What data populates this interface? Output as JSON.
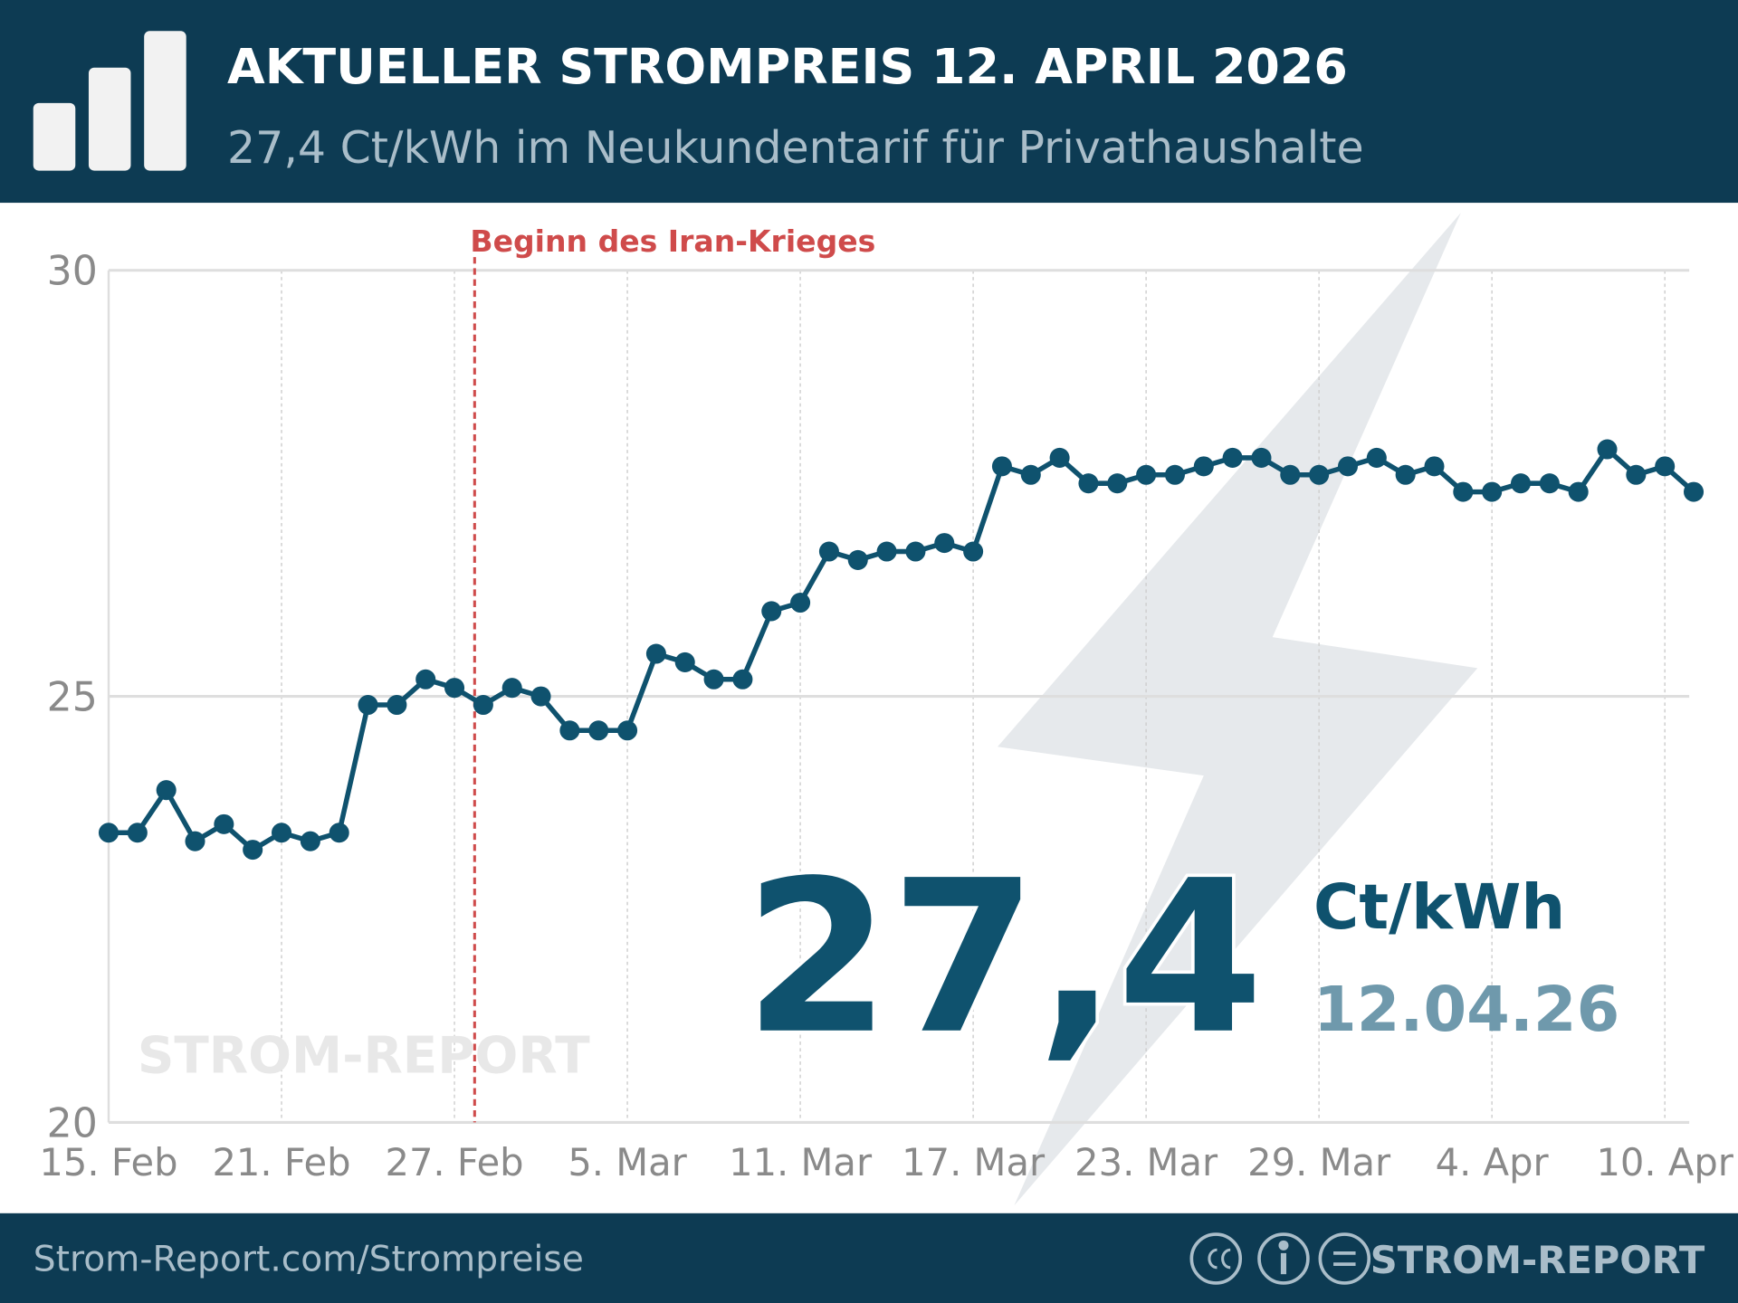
{
  "header": {
    "title": "AKTUELLER STROMPREIS 12. APRIL 2026",
    "subtitle": "27,4 Ct/kWh im Neukundentarif für Privathaushalte"
  },
  "chart_data": {
    "type": "line",
    "categories": [
      "15. Feb",
      null,
      null,
      null,
      null,
      null,
      "21. Feb",
      null,
      null,
      null,
      null,
      null,
      "27. Feb",
      null,
      null,
      null,
      null,
      null,
      "5. Mar",
      null,
      null,
      null,
      null,
      null,
      "11. Mar",
      null,
      null,
      null,
      null,
      null,
      "17. Mar",
      null,
      null,
      null,
      null,
      null,
      "23. Mar",
      null,
      null,
      null,
      null,
      null,
      "29. Mar",
      null,
      null,
      null,
      null,
      null,
      "4. Apr",
      null,
      null,
      null,
      null,
      null,
      "10. Apr",
      null
    ],
    "series": [
      {
        "name": "Strompreis",
        "color": "#0f526e",
        "values": [
          23.4,
          23.4,
          23.9,
          23.3,
          23.5,
          23.2,
          23.4,
          23.3,
          23.4,
          24.9,
          24.9,
          25.2,
          25.1,
          24.9,
          25.1,
          25.0,
          24.6,
          24.6,
          24.6,
          25.5,
          25.4,
          25.2,
          25.2,
          26.0,
          26.1,
          26.7,
          26.6,
          26.7,
          26.7,
          26.8,
          26.7,
          27.7,
          27.6,
          27.8,
          27.5,
          27.5,
          27.6,
          27.6,
          27.7,
          27.8,
          27.8,
          27.6,
          27.6,
          27.7,
          27.8,
          27.6,
          27.7,
          27.4,
          27.4,
          27.5,
          27.5,
          27.4,
          27.9,
          27.6,
          27.7,
          27.4
        ]
      }
    ],
    "ylim": [
      20,
      30
    ],
    "yticks": [
      20,
      25,
      30
    ],
    "grid": true,
    "annotation": "Beginn des Iran-Krieges",
    "highlight": {
      "value": "27,4",
      "unit": "Ct/kWh",
      "date": "12.04.26"
    },
    "watermark": "STROM-REPORT"
  },
  "footer": {
    "url": "Strom-Report.com/Strompreise",
    "brand": "STROM-REPORT"
  }
}
